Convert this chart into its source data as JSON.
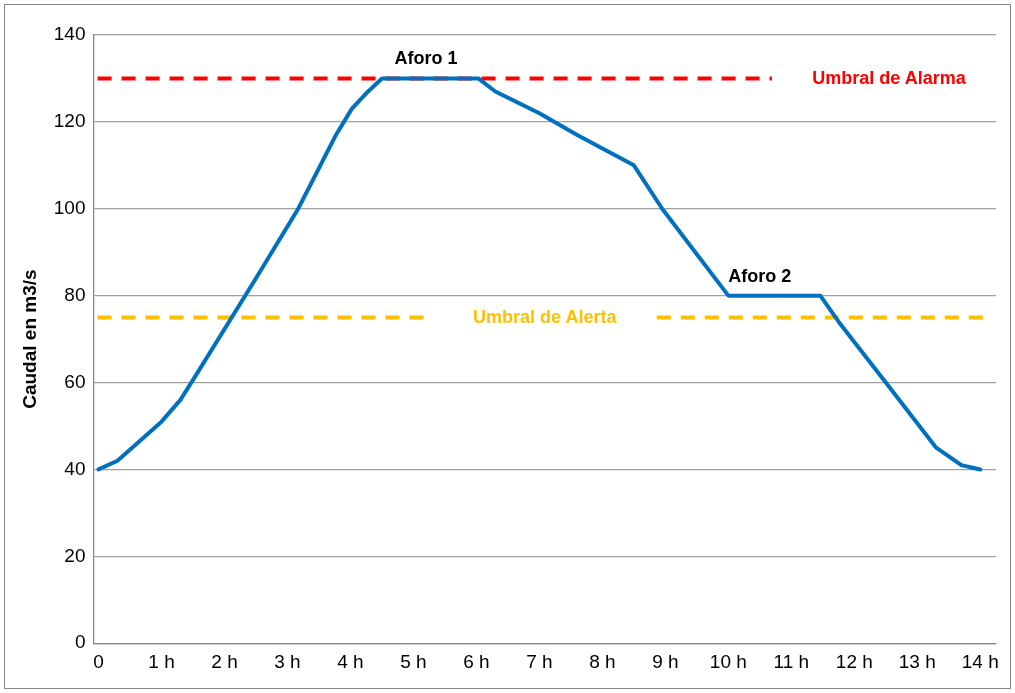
{
  "chart_data": {
    "type": "line",
    "ylabel": "Caudal en m3/s",
    "series": [
      {
        "color": "#0070c0",
        "x": [
          0,
          0.3,
          1,
          1.3,
          1.56,
          2.5,
          3.17,
          3.77,
          4.02,
          4.28,
          4.5,
          6.03,
          6.3,
          7,
          7.6,
          8.5,
          8.95,
          10,
          11.46,
          11.75,
          12.5,
          13.3,
          13.7,
          14
        ],
        "values": [
          40,
          42,
          51,
          56,
          62,
          84,
          100,
          117,
          123,
          127,
          130,
          130,
          127,
          122,
          117,
          110,
          100,
          80,
          80,
          74,
          60,
          45,
          41,
          40
        ]
      }
    ],
    "xlim": [
      -0.08,
      14.25
    ],
    "ylim": [
      0,
      140
    ],
    "xticks": [
      0,
      {
        "value": 1,
        "label": "1 h"
      },
      {
        "value": 2,
        "label": "2 h"
      },
      {
        "value": 3,
        "label": "3 h"
      },
      {
        "value": 4,
        "label": "4 h"
      },
      {
        "value": 5,
        "label": "5 h"
      },
      {
        "value": 6,
        "label": "6 h"
      },
      {
        "value": 7,
        "label": "7 h"
      },
      {
        "value": 8,
        "label": "8 h"
      },
      {
        "value": 9,
        "label": "9 h"
      },
      {
        "value": 10,
        "label": "10 h"
      },
      {
        "value": 11,
        "label": "11 h"
      },
      {
        "value": 12,
        "label": "12 h"
      },
      {
        "value": 13,
        "label": "13 h"
      },
      {
        "value": 14,
        "label": "14 h"
      }
    ],
    "yticks": [
      0,
      20,
      40,
      60,
      80,
      100,
      120,
      140
    ],
    "ref_lines": [
      {
        "axis": "y",
        "value": 130,
        "label": "Umbral de Alarma",
        "color": "#ff0000",
        "line_style": "dashed"
      },
      {
        "axis": "y",
        "value": 75,
        "label": "Umbral de Alerta",
        "color": "#ffc000",
        "line_style": "dashed"
      }
    ],
    "annotations": [
      {
        "text": "Aforo 1",
        "x": 5.2,
        "y": 130
      },
      {
        "text": "Aforo 2",
        "x": 10.5,
        "y": 80
      }
    ],
    "grid": "y",
    "legend": false,
    "marker": "none",
    "line_style": "solid"
  }
}
